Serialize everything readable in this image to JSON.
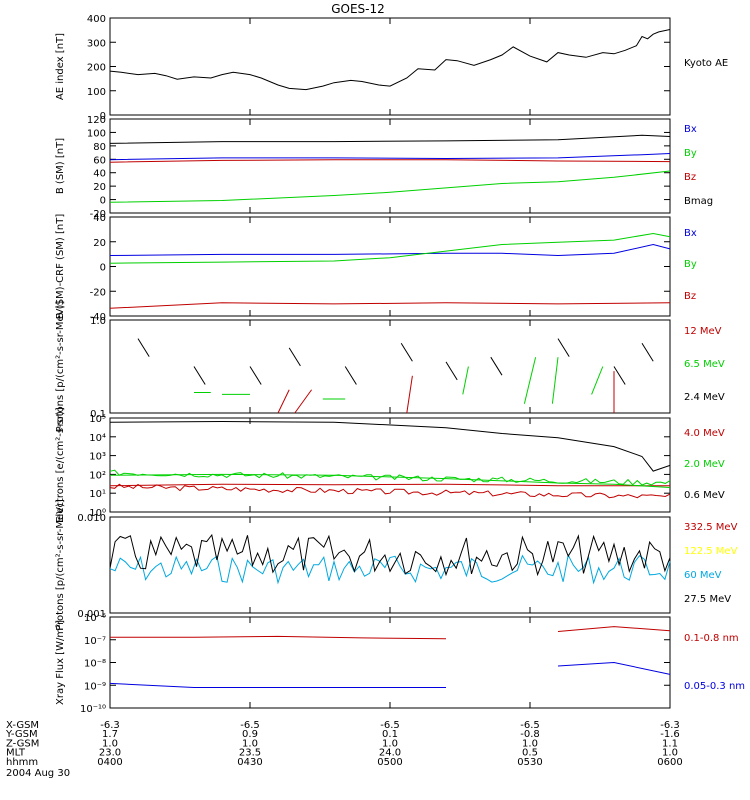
{
  "title": "GOES-12",
  "date": "2004 Aug 30",
  "colors": {
    "black": "#000000",
    "red": "#c00000",
    "green": "#00d000",
    "blue": "#0000e0",
    "yellow": "#ffff00",
    "cyan": "#00a8e0"
  },
  "ephemeris": {
    "labels": [
      "X-GSM",
      "Y-GSM",
      "Z-GSM",
      "MLT",
      "hhmm"
    ],
    "columns": [
      {
        "x-gsm": "-6.3",
        "y-gsm": "1.7",
        "z-gsm": "1.0",
        "mlt": "23.0",
        "hhmm": "0400"
      },
      {
        "x-gsm": "-6.5",
        "y-gsm": "0.9",
        "z-gsm": "1.0",
        "mlt": "23.5",
        "hhmm": "0430"
      },
      {
        "x-gsm": "-6.5",
        "y-gsm": "0.1",
        "z-gsm": "1.0",
        "mlt": "24.0",
        "hhmm": "0500"
      },
      {
        "x-gsm": "-6.5",
        "y-gsm": "-0.8",
        "z-gsm": "1.0",
        "mlt": "0.5",
        "hhmm": "0530"
      },
      {
        "x-gsm": "-6.3",
        "y-gsm": "-1.6",
        "z-gsm": "1.1",
        "mlt": "1.0",
        "hhmm": "0600"
      }
    ]
  },
  "chart_data": [
    {
      "type": "line",
      "ylabel": "AE index [nT]",
      "ylim": [
        0,
        420
      ],
      "yticks": [
        "0",
        "100",
        "200",
        "300",
        "400"
      ],
      "series": [
        {
          "name": "Kyoto AE",
          "color": "black",
          "x": [
            0,
            0.02,
            0.05,
            0.08,
            0.1,
            0.12,
            0.15,
            0.18,
            0.2,
            0.22,
            0.25,
            0.27,
            0.3,
            0.32,
            0.35,
            0.38,
            0.4,
            0.43,
            0.45,
            0.48,
            0.5,
            0.53,
            0.55,
            0.58,
            0.6,
            0.62,
            0.65,
            0.68,
            0.7,
            0.72,
            0.75,
            0.78,
            0.8,
            0.82,
            0.85,
            0.88,
            0.9,
            0.92,
            0.94,
            0.95,
            0.96,
            0.97,
            0.98,
            1.0
          ],
          "y": [
            190,
            185,
            175,
            180,
            170,
            155,
            165,
            160,
            175,
            185,
            175,
            160,
            130,
            115,
            110,
            125,
            140,
            150,
            145,
            130,
            125,
            160,
            200,
            195,
            240,
            235,
            215,
            240,
            260,
            295,
            255,
            230,
            270,
            260,
            250,
            270,
            265,
            280,
            300,
            340,
            330,
            350,
            360,
            370
          ]
        }
      ]
    },
    {
      "type": "line",
      "ylabel": "B (SM) [nT]",
      "ylim": [
        -25,
        125
      ],
      "yticks": [
        "-20",
        "0",
        "20",
        "40",
        "60",
        "80",
        "100",
        "120"
      ],
      "series": [
        {
          "name": "Bx",
          "color": "blue",
          "x": [
            0,
            0.2,
            0.4,
            0.6,
            0.8,
            0.95,
            1.0
          ],
          "y": [
            60,
            63,
            63,
            62,
            63,
            68,
            70
          ]
        },
        {
          "name": "By",
          "color": "green",
          "x": [
            0,
            0.2,
            0.4,
            0.5,
            0.6,
            0.7,
            0.8,
            0.9,
            1.0
          ],
          "y": [
            -8,
            -5,
            3,
            8,
            15,
            22,
            25,
            32,
            42
          ]
        },
        {
          "name": "Bz",
          "color": "red",
          "x": [
            0,
            0.2,
            0.4,
            0.6,
            0.8,
            1.0
          ],
          "y": [
            56,
            59,
            60,
            60,
            58,
            57
          ]
        },
        {
          "name": "Bmag",
          "color": "black",
          "x": [
            0,
            0.2,
            0.4,
            0.6,
            0.8,
            0.95,
            1.0
          ],
          "y": [
            86,
            89,
            89,
            90,
            92,
            99,
            97
          ]
        }
      ]
    },
    {
      "type": "line",
      "ylabel": "B (SM)-CRF (SM) [nT]",
      "ylim": [
        -45,
        45
      ],
      "yticks": [
        "-40",
        "-20",
        "0",
        "20",
        "40"
      ],
      "series": [
        {
          "name": "Bx",
          "color": "blue",
          "x": [
            0,
            0.2,
            0.4,
            0.6,
            0.7,
            0.8,
            0.9,
            0.97,
            1.0
          ],
          "y": [
            10,
            11,
            11,
            12,
            12,
            10,
            12,
            20,
            16
          ]
        },
        {
          "name": "By",
          "color": "green",
          "x": [
            0,
            0.2,
            0.4,
            0.5,
            0.6,
            0.7,
            0.8,
            0.9,
            0.97,
            1.0
          ],
          "y": [
            3,
            4,
            5,
            8,
            14,
            20,
            22,
            24,
            30,
            27
          ]
        },
        {
          "name": "Bz",
          "color": "red",
          "x": [
            0,
            0.2,
            0.4,
            0.6,
            0.8,
            1.0
          ],
          "y": [
            -38,
            -33,
            -34,
            -33,
            -34,
            -33
          ]
        }
      ]
    },
    {
      "type": "line",
      "ylabel": "Protons [p/(cm²-s-sr-MeV)]",
      "yscale": "log",
      "ylim": [
        0.1,
        1.0
      ],
      "yticks": [
        "0.1",
        "1.0"
      ],
      "series": [
        {
          "name": "12 MeV",
          "color": "red"
        },
        {
          "name": "6.5 MeV",
          "color": "green"
        },
        {
          "name": "2.4 MeV",
          "color": "black"
        }
      ]
    },
    {
      "type": "line",
      "ylabel": "Electrons [e/(cm²-s-sr)]",
      "yscale": "log",
      "ylim": [
        1,
        100000
      ],
      "yticks": [
        "10⁰",
        "10¹",
        "10²",
        "10³",
        "10⁴",
        "10⁵"
      ],
      "series": [
        {
          "name": "4.0 MeV",
          "color": "red",
          "x": [
            0,
            0.2,
            0.4,
            0.6,
            0.8,
            1.0
          ],
          "y": [
            25,
            30,
            28,
            30,
            25,
            25
          ]
        },
        {
          "name": "2.0 MeV",
          "color": "green",
          "x": [
            0,
            0.2,
            0.4,
            0.6,
            0.8,
            0.9,
            1.0
          ],
          "y": [
            90,
            100,
            90,
            60,
            35,
            30,
            20
          ]
        },
        {
          "name": "0.6 MeV",
          "color": "black",
          "x": [
            0,
            0.2,
            0.4,
            0.6,
            0.7,
            0.8,
            0.9,
            0.95,
            0.97,
            1.0
          ],
          "y": [
            60000,
            65000,
            60000,
            30000,
            15000,
            9000,
            3000,
            900,
            150,
            300
          ]
        }
      ]
    },
    {
      "type": "line",
      "ylabel": "Protons [p/(cm²-s-sr-MeV)]",
      "yscale": "log",
      "ylim": [
        0.001,
        0.1
      ],
      "yticks": [
        "0.001",
        "0.010"
      ],
      "series": [
        {
          "name": "332.5 MeV",
          "color": "red"
        },
        {
          "name": "122.5 MeV",
          "color": "yellow"
        },
        {
          "name": "60 MeV",
          "color": "cyan"
        },
        {
          "name": "27.5 MeV",
          "color": "black"
        }
      ]
    },
    {
      "type": "line",
      "ylabel": "Xray Flux [W/m²]",
      "yscale": "log",
      "ylim": [
        1e-10,
        1e-06
      ],
      "yticks": [
        "10⁻¹⁰",
        "10⁻⁹",
        "10⁻⁸",
        "10⁻⁷",
        "10⁻⁶"
      ],
      "series": [
        {
          "name": "0.1-0.8 nm",
          "color": "red",
          "x": [
            0,
            0.15,
            0.3,
            0.45,
            0.6,
            0.7,
            0.8,
            0.9,
            1.0
          ],
          "y": [
            1.3e-07,
            1.3e-07,
            1.4e-07,
            1.2e-07,
            1.1e-07,
            null,
            2.3e-07,
            3.8e-07,
            2.5e-07
          ]
        },
        {
          "name": "0.05-0.3 nm",
          "color": "blue",
          "x": [
            0,
            0.15,
            0.3,
            0.45,
            0.6,
            0.7,
            0.8,
            0.9,
            1.0
          ],
          "y": [
            1.2e-09,
            8e-10,
            8e-10,
            8e-10,
            8e-10,
            null,
            7e-09,
            1e-08,
            3e-09
          ]
        }
      ]
    }
  ]
}
